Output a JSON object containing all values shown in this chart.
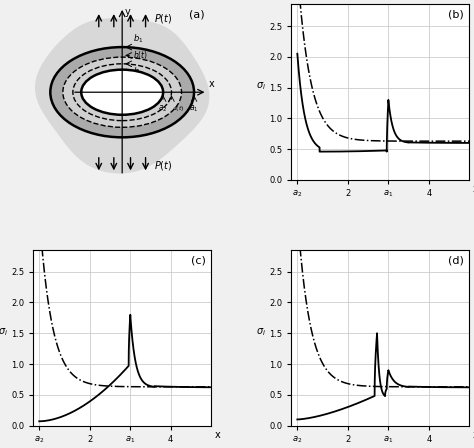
{
  "fig_bg": "#f0f0f0",
  "plot_bg": "#ffffff",
  "grid_color": "#cccccc",
  "black": "#000000",
  "ylim": [
    0,
    2.85
  ],
  "yticks": [
    0,
    0.5,
    1.0,
    1.5,
    2.0,
    2.5
  ],
  "a1": 3.0,
  "a2": 0.75,
  "xmin": 0.6,
  "xmax": 5.0,
  "panels": [
    "(b)",
    "(c)",
    "(d)"
  ],
  "peak_b": 1.3,
  "peak_c": 1.8,
  "peak_d1": 1.5,
  "peak_d2": 0.9
}
